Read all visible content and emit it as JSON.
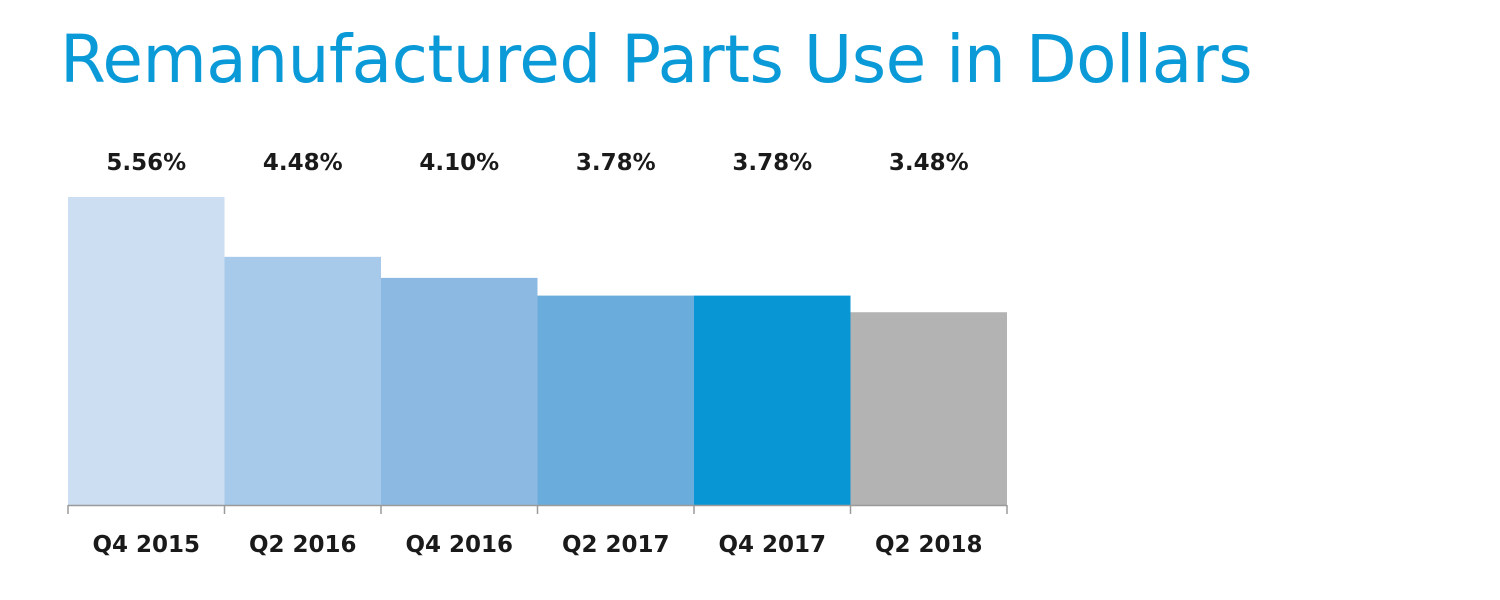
{
  "chart_data": {
    "type": "bar",
    "title": "Remanufactured Parts Use in Dollars",
    "categories": [
      "Q4 2015",
      "Q2 2016",
      "Q4 2016",
      "Q2 2017",
      "Q4 2017",
      "Q2 2018"
    ],
    "values": [
      5.56,
      4.48,
      4.1,
      3.78,
      3.78,
      3.48
    ],
    "data_labels": [
      "5.56%",
      "4.48%",
      "4.10%",
      "3.78%",
      "3.78%",
      "3.48%"
    ],
    "colors": [
      "#cbdef2",
      "#a8caea",
      "#8cb9e2",
      "#6aacdb",
      "#0996d5",
      "#b3b3b3"
    ],
    "ylim": [
      0,
      5.56
    ],
    "grid": false,
    "legend": "none",
    "xlabel": "",
    "ylabel": ""
  }
}
